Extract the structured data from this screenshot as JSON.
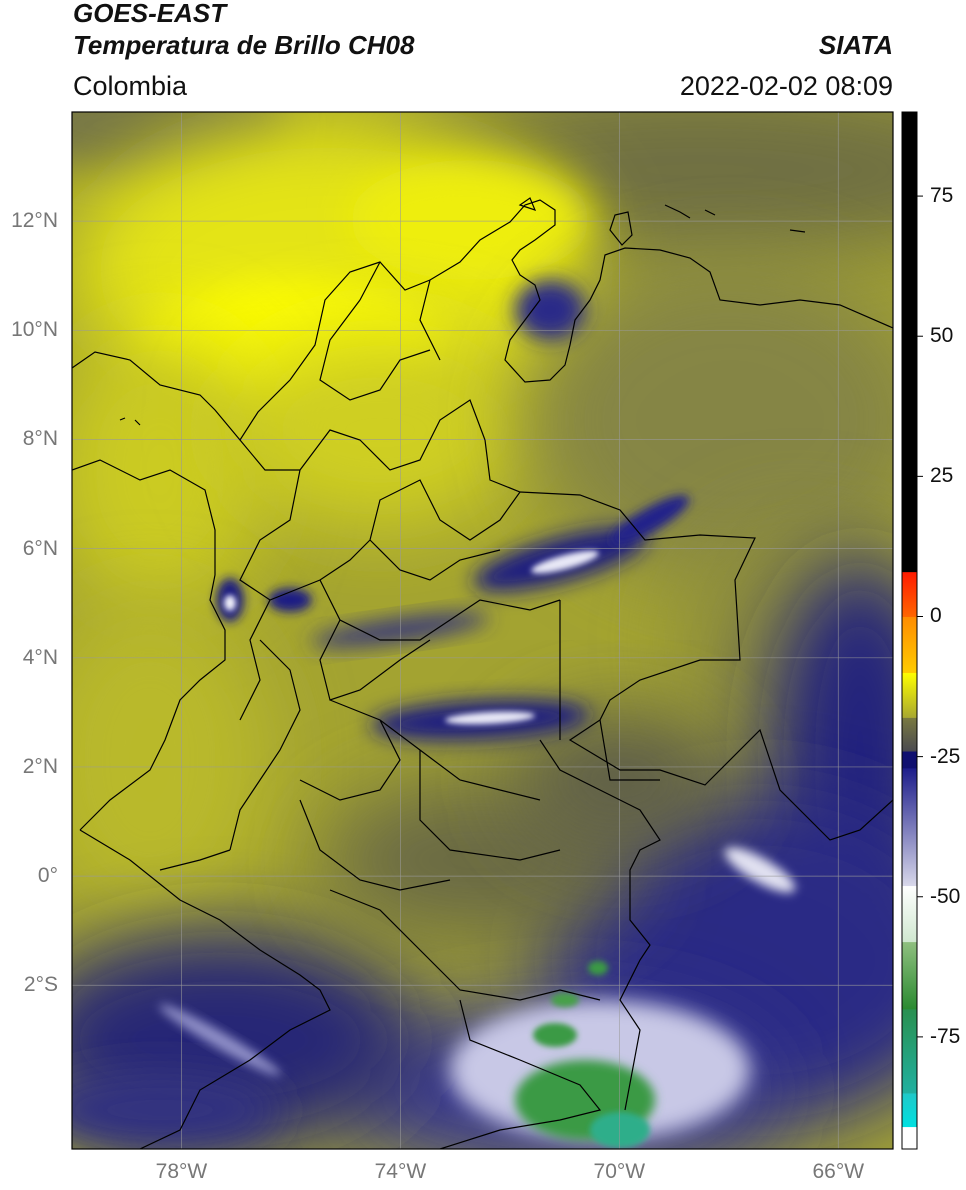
{
  "header": {
    "satellite": "GOES-EAST",
    "product": "Temperatura de Brillo CH08",
    "region": "Colombia",
    "source": "SIATA",
    "datetime": "2022-02-02 08:09"
  },
  "map": {
    "lon_range": [
      -80.0,
      -65.0
    ],
    "lat_range": [
      -5.0,
      14.0
    ],
    "grid": true,
    "lat_ticks": [
      {
        "value": 12,
        "label": "12°N"
      },
      {
        "value": 10,
        "label": "10°N"
      },
      {
        "value": 8,
        "label": "8°N"
      },
      {
        "value": 6,
        "label": "6°N"
      },
      {
        "value": 4,
        "label": "4°N"
      },
      {
        "value": 2,
        "label": "2°N"
      },
      {
        "value": 0,
        "label": "0°"
      },
      {
        "value": -2,
        "label": "2°S"
      }
    ],
    "lon_ticks": [
      {
        "value": -78,
        "label": "78°W"
      },
      {
        "value": -74,
        "label": "74°W"
      },
      {
        "value": -70,
        "label": "70°W"
      },
      {
        "value": -66,
        "label": "66°W"
      }
    ]
  },
  "colorbar": {
    "range": [
      -95,
      90
    ],
    "ticks": [
      {
        "value": 75,
        "label": "75"
      },
      {
        "value": 50,
        "label": "50"
      },
      {
        "value": 25,
        "label": "25"
      },
      {
        "value": 0,
        "label": "0"
      },
      {
        "value": -25,
        "label": "-25"
      },
      {
        "value": -50,
        "label": "-50"
      },
      {
        "value": -75,
        "label": "-75"
      }
    ],
    "segments": [
      {
        "from": -95,
        "to": -91,
        "colors": [
          "#ffffff"
        ]
      },
      {
        "from": -91,
        "to": -85,
        "colors": [
          "#00e0e0",
          "#20c8c8"
        ]
      },
      {
        "from": -85,
        "to": -70,
        "colors": [
          "#20b0a0",
          "#2a9050"
        ]
      },
      {
        "from": -70,
        "to": -58,
        "colors": [
          "#2a8a30",
          "#90c080"
        ]
      },
      {
        "from": -58,
        "to": -48,
        "colors": [
          "#d0e8d0",
          "#ffffff"
        ]
      },
      {
        "from": -48,
        "to": -27,
        "colors": [
          "#d8d8ea",
          "#1c1c8a"
        ]
      },
      {
        "from": -27,
        "to": -24,
        "colors": [
          "#101070"
        ]
      },
      {
        "from": -24,
        "to": -18,
        "colors": [
          "#4a4a50",
          "#7a7a40"
        ]
      },
      {
        "from": -18,
        "to": -10,
        "colors": [
          "#a8a830",
          "#ffff00"
        ]
      },
      {
        "from": -10,
        "to": 0,
        "colors": [
          "#ffcc00",
          "#ff8c00"
        ]
      },
      {
        "from": 0,
        "to": 8,
        "colors": [
          "#ff6600",
          "#ff1a00"
        ]
      },
      {
        "from": 8,
        "to": 90,
        "colors": [
          "#000000"
        ]
      }
    ]
  },
  "colors": {
    "warm_dry": "#e8e810",
    "mid": "#9a9a30",
    "cold_cloud": "#1c1c80",
    "very_cold": "#ffffff",
    "coldest": "#3d9a45",
    "boundary": "#000000"
  }
}
